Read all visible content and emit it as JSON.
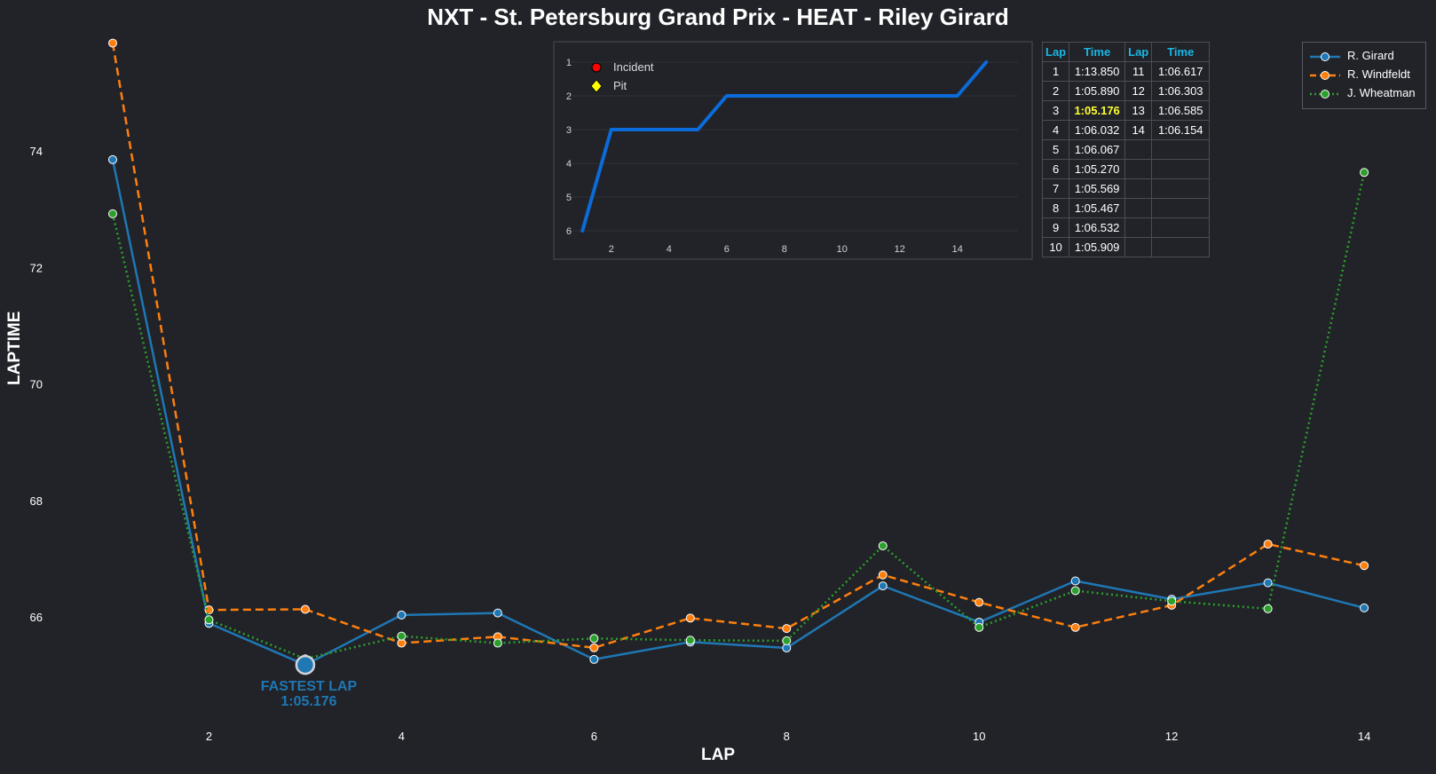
{
  "title": "NXT - St. Petersburg Grand Prix - HEAT - Riley Girard",
  "colors": {
    "background": "#212328",
    "girard": "#1f77b4",
    "windfeldt": "#ff7f0e",
    "wheatman": "#2ca02c",
    "position_line": "#0b6bd8",
    "table_header": "#19b8e6",
    "fastest_highlight": "#ffff33"
  },
  "chart_data": [
    {
      "type": "line",
      "xlabel": "LAP",
      "ylabel": "LAPTIME",
      "x": [
        1,
        2,
        3,
        4,
        5,
        6,
        7,
        8,
        9,
        10,
        11,
        12,
        13,
        14
      ],
      "xticks": [
        "2",
        "4",
        "6",
        "8",
        "10",
        "12",
        "14"
      ],
      "yticks": [
        "66",
        "68",
        "70",
        "72",
        "74"
      ],
      "xlim": [
        0.3,
        14.55
      ],
      "ylim": [
        64.25,
        75.85
      ],
      "grid": false,
      "legend_position": "top-right",
      "series": [
        {
          "name": "R. Girard",
          "style": "solid",
          "values": [
            73.85,
            65.89,
            65.176,
            66.032,
            66.067,
            65.27,
            65.569,
            65.467,
            66.532,
            65.909,
            66.617,
            66.303,
            66.585,
            66.154
          ]
        },
        {
          "name": "R. Windfeldt",
          "style": "dashed",
          "values": [
            75.85,
            66.12,
            66.13,
            65.55,
            65.66,
            65.47,
            65.98,
            65.8,
            66.72,
            66.25,
            65.82,
            66.2,
            67.25,
            66.88
          ]
        },
        {
          "name": "J. Wheatman",
          "style": "dotted",
          "values": [
            72.92,
            65.95,
            65.28,
            65.67,
            65.55,
            65.63,
            65.6,
            65.59,
            67.22,
            65.82,
            66.45,
            66.27,
            66.14,
            73.63
          ]
        }
      ],
      "annotation": {
        "x": 3,
        "y": 65.176,
        "label": "FASTEST LAP",
        "value": "1:05.176"
      }
    },
    {
      "type": "line",
      "title": "",
      "x": [
        1,
        2,
        3,
        4,
        5,
        6,
        7,
        8,
        9,
        10,
        11,
        12,
        13,
        14,
        15
      ],
      "values": [
        6,
        3,
        3,
        3,
        3,
        2,
        2,
        2,
        2,
        2,
        2,
        2,
        2,
        2,
        1
      ],
      "xticks": [
        "2",
        "4",
        "6",
        "8",
        "10",
        "12",
        "14"
      ],
      "yticks": [
        "1",
        "2",
        "3",
        "4",
        "5",
        "6"
      ],
      "xlim": [
        0.3,
        16.2
      ],
      "ylim": [
        6.3,
        0.9
      ],
      "grid": true,
      "legend": [
        {
          "name": "Incident",
          "color": "#ff0000",
          "marker": "circle"
        },
        {
          "name": "Pit",
          "color": "#ffff00",
          "marker": "diamond"
        }
      ]
    }
  ],
  "table": {
    "headers": [
      "Lap",
      "Time",
      "Lap",
      "Time"
    ],
    "rows": [
      [
        "1",
        "1:13.850",
        "11",
        "1:06.617"
      ],
      [
        "2",
        "1:05.890",
        "12",
        "1:06.303"
      ],
      [
        "3",
        "1:05.176",
        "13",
        "1:06.585"
      ],
      [
        "4",
        "1:06.032",
        "14",
        "1:06.154"
      ],
      [
        "5",
        "1:06.067",
        "",
        ""
      ],
      [
        "6",
        "1:05.270",
        "",
        ""
      ],
      [
        "7",
        "1:05.569",
        "",
        ""
      ],
      [
        "8",
        "1:05.467",
        "",
        ""
      ],
      [
        "9",
        "1:06.532",
        "",
        ""
      ],
      [
        "10",
        "1:05.909",
        "",
        ""
      ]
    ],
    "highlight_row": 2
  }
}
